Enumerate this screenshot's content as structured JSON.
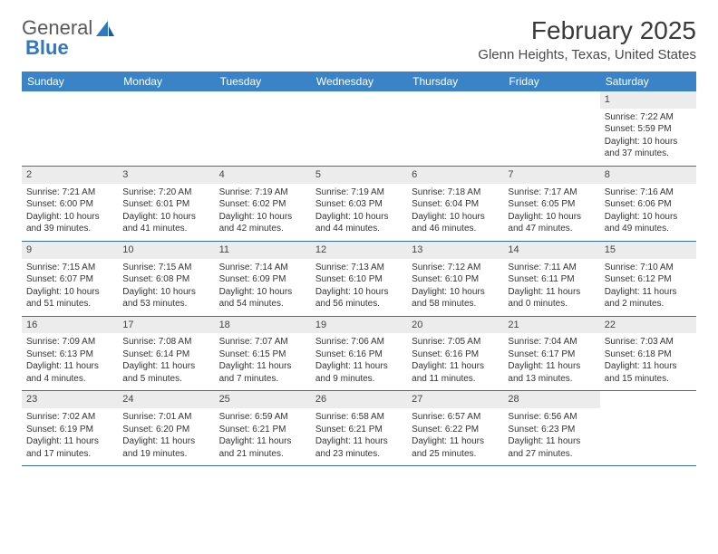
{
  "logo": {
    "text1": "General",
    "text2": "Blue"
  },
  "title": "February 2025",
  "location": "Glenn Heights, Texas, United States",
  "colors": {
    "header_bg": "#3b83c7",
    "header_text": "#ffffff",
    "daynum_bg": "#ececec",
    "body_text": "#333333",
    "week_border": "#3b6fa3",
    "logo_accent": "#2f78c4"
  },
  "day_headers": [
    "Sunday",
    "Monday",
    "Tuesday",
    "Wednesday",
    "Thursday",
    "Friday",
    "Saturday"
  ],
  "weeks": [
    [
      {
        "day": "",
        "lines": []
      },
      {
        "day": "",
        "lines": []
      },
      {
        "day": "",
        "lines": []
      },
      {
        "day": "",
        "lines": []
      },
      {
        "day": "",
        "lines": []
      },
      {
        "day": "",
        "lines": []
      },
      {
        "day": "1",
        "lines": [
          "Sunrise: 7:22 AM",
          "Sunset: 5:59 PM",
          "Daylight: 10 hours and 37 minutes."
        ]
      }
    ],
    [
      {
        "day": "2",
        "lines": [
          "Sunrise: 7:21 AM",
          "Sunset: 6:00 PM",
          "Daylight: 10 hours and 39 minutes."
        ]
      },
      {
        "day": "3",
        "lines": [
          "Sunrise: 7:20 AM",
          "Sunset: 6:01 PM",
          "Daylight: 10 hours and 41 minutes."
        ]
      },
      {
        "day": "4",
        "lines": [
          "Sunrise: 7:19 AM",
          "Sunset: 6:02 PM",
          "Daylight: 10 hours and 42 minutes."
        ]
      },
      {
        "day": "5",
        "lines": [
          "Sunrise: 7:19 AM",
          "Sunset: 6:03 PM",
          "Daylight: 10 hours and 44 minutes."
        ]
      },
      {
        "day": "6",
        "lines": [
          "Sunrise: 7:18 AM",
          "Sunset: 6:04 PM",
          "Daylight: 10 hours and 46 minutes."
        ]
      },
      {
        "day": "7",
        "lines": [
          "Sunrise: 7:17 AM",
          "Sunset: 6:05 PM",
          "Daylight: 10 hours and 47 minutes."
        ]
      },
      {
        "day": "8",
        "lines": [
          "Sunrise: 7:16 AM",
          "Sunset: 6:06 PM",
          "Daylight: 10 hours and 49 minutes."
        ]
      }
    ],
    [
      {
        "day": "9",
        "lines": [
          "Sunrise: 7:15 AM",
          "Sunset: 6:07 PM",
          "Daylight: 10 hours and 51 minutes."
        ]
      },
      {
        "day": "10",
        "lines": [
          "Sunrise: 7:15 AM",
          "Sunset: 6:08 PM",
          "Daylight: 10 hours and 53 minutes."
        ]
      },
      {
        "day": "11",
        "lines": [
          "Sunrise: 7:14 AM",
          "Sunset: 6:09 PM",
          "Daylight: 10 hours and 54 minutes."
        ]
      },
      {
        "day": "12",
        "lines": [
          "Sunrise: 7:13 AM",
          "Sunset: 6:10 PM",
          "Daylight: 10 hours and 56 minutes."
        ]
      },
      {
        "day": "13",
        "lines": [
          "Sunrise: 7:12 AM",
          "Sunset: 6:10 PM",
          "Daylight: 10 hours and 58 minutes."
        ]
      },
      {
        "day": "14",
        "lines": [
          "Sunrise: 7:11 AM",
          "Sunset: 6:11 PM",
          "Daylight: 11 hours and 0 minutes."
        ]
      },
      {
        "day": "15",
        "lines": [
          "Sunrise: 7:10 AM",
          "Sunset: 6:12 PM",
          "Daylight: 11 hours and 2 minutes."
        ]
      }
    ],
    [
      {
        "day": "16",
        "lines": [
          "Sunrise: 7:09 AM",
          "Sunset: 6:13 PM",
          "Daylight: 11 hours and 4 minutes."
        ]
      },
      {
        "day": "17",
        "lines": [
          "Sunrise: 7:08 AM",
          "Sunset: 6:14 PM",
          "Daylight: 11 hours and 5 minutes."
        ]
      },
      {
        "day": "18",
        "lines": [
          "Sunrise: 7:07 AM",
          "Sunset: 6:15 PM",
          "Daylight: 11 hours and 7 minutes."
        ]
      },
      {
        "day": "19",
        "lines": [
          "Sunrise: 7:06 AM",
          "Sunset: 6:16 PM",
          "Daylight: 11 hours and 9 minutes."
        ]
      },
      {
        "day": "20",
        "lines": [
          "Sunrise: 7:05 AM",
          "Sunset: 6:16 PM",
          "Daylight: 11 hours and 11 minutes."
        ]
      },
      {
        "day": "21",
        "lines": [
          "Sunrise: 7:04 AM",
          "Sunset: 6:17 PM",
          "Daylight: 11 hours and 13 minutes."
        ]
      },
      {
        "day": "22",
        "lines": [
          "Sunrise: 7:03 AM",
          "Sunset: 6:18 PM",
          "Daylight: 11 hours and 15 minutes."
        ]
      }
    ],
    [
      {
        "day": "23",
        "lines": [
          "Sunrise: 7:02 AM",
          "Sunset: 6:19 PM",
          "Daylight: 11 hours and 17 minutes."
        ]
      },
      {
        "day": "24",
        "lines": [
          "Sunrise: 7:01 AM",
          "Sunset: 6:20 PM",
          "Daylight: 11 hours and 19 minutes."
        ]
      },
      {
        "day": "25",
        "lines": [
          "Sunrise: 6:59 AM",
          "Sunset: 6:21 PM",
          "Daylight: 11 hours and 21 minutes."
        ]
      },
      {
        "day": "26",
        "lines": [
          "Sunrise: 6:58 AM",
          "Sunset: 6:21 PM",
          "Daylight: 11 hours and 23 minutes."
        ]
      },
      {
        "day": "27",
        "lines": [
          "Sunrise: 6:57 AM",
          "Sunset: 6:22 PM",
          "Daylight: 11 hours and 25 minutes."
        ]
      },
      {
        "day": "28",
        "lines": [
          "Sunrise: 6:56 AM",
          "Sunset: 6:23 PM",
          "Daylight: 11 hours and 27 minutes."
        ]
      },
      {
        "day": "",
        "lines": []
      }
    ]
  ]
}
